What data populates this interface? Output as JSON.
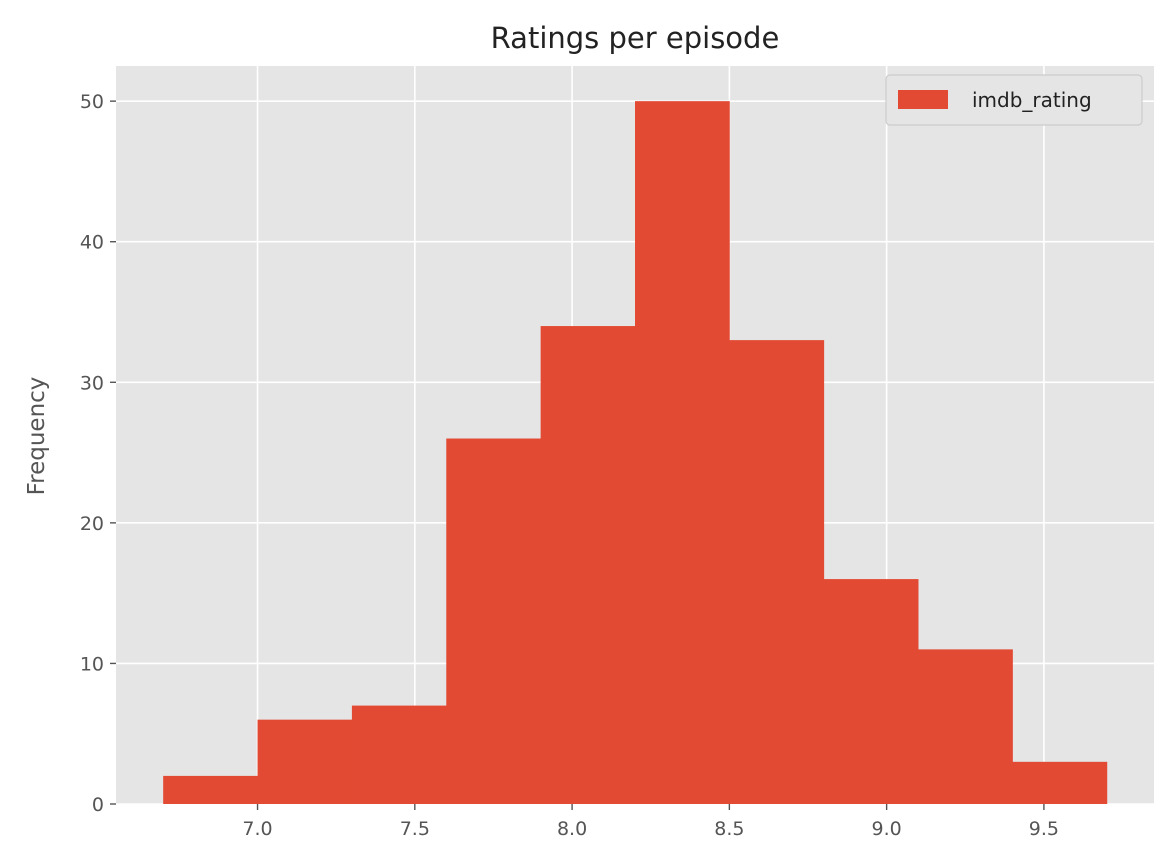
{
  "chart_data": {
    "type": "bar",
    "title": "Ratings per episode",
    "xlabel": "",
    "ylabel": "Frequency",
    "xlim": [
      6.55,
      9.85
    ],
    "ylim": [
      0,
      52.5
    ],
    "x_ticks": [
      7.0,
      7.5,
      8.0,
      8.5,
      9.0,
      9.5
    ],
    "x_tick_labels": [
      "7.0",
      "7.5",
      "8.0",
      "8.5",
      "9.0",
      "9.5"
    ],
    "y_ticks": [
      0,
      10,
      20,
      30,
      40,
      50
    ],
    "y_tick_labels": [
      "0",
      "10",
      "20",
      "30",
      "40",
      "50"
    ],
    "bin_edges": [
      6.7,
      7.0,
      7.3,
      7.6,
      7.9,
      8.2,
      8.5,
      8.8,
      9.1,
      9.4,
      9.7
    ],
    "series": [
      {
        "name": "imdb_rating",
        "color": "#E24A33",
        "values": [
          2,
          6,
          7,
          26,
          34,
          50,
          33,
          16,
          11,
          3
        ]
      }
    ],
    "grid": true,
    "legend_position": "top-right",
    "background_color": "#E5E5E5"
  }
}
